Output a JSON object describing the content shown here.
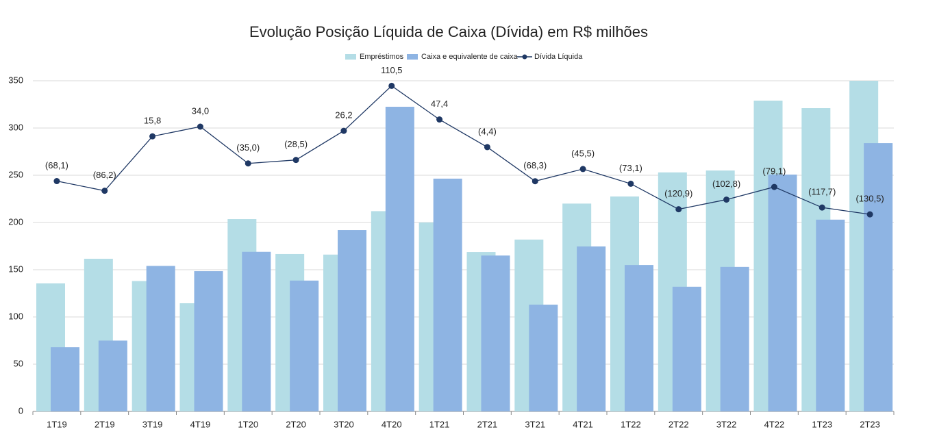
{
  "chart_data": {
    "type": "bar",
    "title": "Evolução Posição Líquida de Caixa (Dívida) em R$ milhões",
    "categories": [
      "1T19",
      "2T19",
      "3T19",
      "4T19",
      "1T20",
      "2T20",
      "3T20",
      "4T20",
      "1T21",
      "2T21",
      "3T21",
      "4T21",
      "1T22",
      "2T22",
      "3T22",
      "4T22",
      "1T23",
      "2T23"
    ],
    "series": [
      {
        "name": "Empréstimos",
        "type": "bar",
        "color": "#b4dde6",
        "values": [
          135.5,
          161.6,
          138,
          114.5,
          203.6,
          166.7,
          166,
          212,
          200,
          168.8,
          181.9,
          220,
          227.5,
          253,
          255,
          329,
          321,
          350
        ]
      },
      {
        "name": "Caixa e equivalente de caixa",
        "type": "bar",
        "color": "#8eb4e3",
        "values": [
          68,
          75,
          154,
          148.5,
          169,
          138.5,
          192,
          322.5,
          246.4,
          165,
          113,
          174.6,
          155,
          132,
          153,
          250.7,
          203,
          284
        ]
      },
      {
        "name": "Dívida Líquida",
        "type": "line",
        "color": "#1f3864",
        "axis": "y2",
        "values": [
          -68.1,
          -86.2,
          15.8,
          34.0,
          -35.0,
          -28.5,
          26.2,
          110.5,
          47.4,
          -4.4,
          -68.3,
          -45.5,
          -73.1,
          -120.9,
          -102.8,
          -79.1,
          -117.7,
          -130.5
        ],
        "value_labels": [
          "(68,1)",
          "(86,2)",
          "15,8",
          "34,0",
          "(35,0)",
          "(28,5)",
          "26,2",
          "110,5",
          "47,4",
          "(4,4)",
          "(68,3)",
          "(45,5)",
          "(73,1)",
          "(120,9)",
          "(102,8)",
          "(79,1)",
          "(117,7)",
          "(130,5)"
        ]
      }
    ],
    "ylim": [
      0,
      350
    ],
    "yticks": [
      0,
      50,
      100,
      150,
      200,
      250,
      300,
      350
    ],
    "y2lim": [
      -500,
      120
    ],
    "grid": true,
    "legend": "top"
  }
}
